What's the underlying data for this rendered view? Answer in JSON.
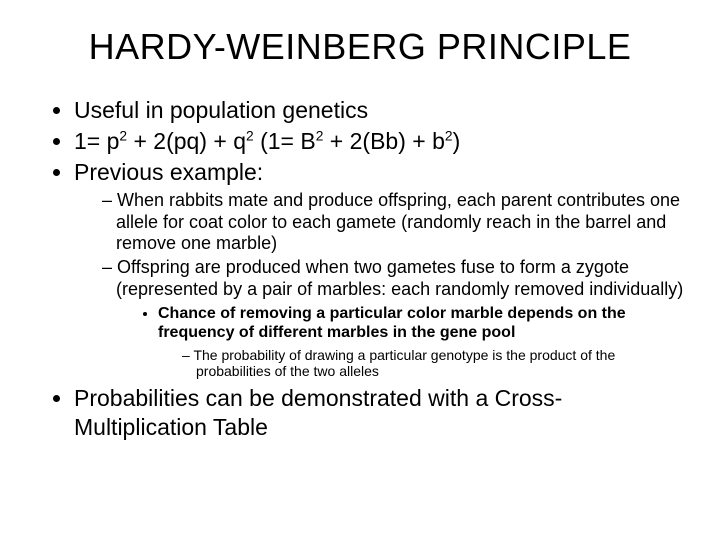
{
  "title": "HARDY-WEINBERG PRINCIPLE",
  "b1": "Useful in population genetics",
  "b2a": "1= p",
  "b2b": " + 2(pq) + q",
  "b2c": "    (1= B",
  "b2d": " + 2(Bb) + b",
  "b2e": ")",
  "sup2": "2",
  "b3": "Previous example:",
  "s1": "When rabbits mate and produce offspring, each parent contributes one allele for coat color to each gamete (randomly reach in the barrel and remove one marble)",
  "s2": "Offspring are produced when two gametes fuse to form a zygote (represented by a pair of marbles: each randomly removed individually)",
  "ss1": "Chance of removing a particular color marble depends on the frequency of different marbles in the gene pool",
  "sss1": "The probability of drawing a particular genotype is the product of the probabilities of the two alleles",
  "b4": "Probabilities can be demonstrated with a Cross-Multiplication Table"
}
